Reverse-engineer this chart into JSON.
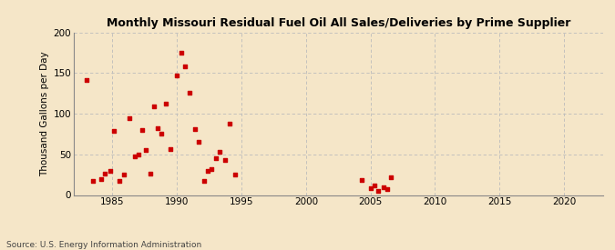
{
  "title": "Monthly Missouri Residual Fuel Oil All Sales/Deliveries by Prime Supplier",
  "ylabel": "Thousand Gallons per Day",
  "source": "Source: U.S. Energy Information Administration",
  "background_color": "#f5e6c8",
  "scatter_color": "#cc0000",
  "xlim": [
    1982,
    2023
  ],
  "ylim": [
    0,
    200
  ],
  "xticks": [
    1985,
    1990,
    1995,
    2000,
    2005,
    2010,
    2015,
    2020
  ],
  "yticks": [
    0,
    50,
    100,
    150,
    200
  ],
  "x": [
    1983.0,
    1983.5,
    1984.1,
    1984.4,
    1984.8,
    1985.1,
    1985.5,
    1985.9,
    1986.3,
    1986.7,
    1987.0,
    1987.3,
    1987.6,
    1987.9,
    1988.2,
    1988.5,
    1988.8,
    1989.1,
    1989.5,
    1990.0,
    1990.3,
    1990.6,
    1991.0,
    1991.4,
    1991.7,
    1992.1,
    1992.4,
    1992.7,
    1993.0,
    1993.3,
    1993.7,
    1994.1,
    1994.5,
    2004.3,
    2005.0,
    2005.3,
    2005.6,
    2006.0,
    2006.3,
    2006.6
  ],
  "y": [
    142,
    17,
    20,
    26,
    30,
    79,
    17,
    25,
    95,
    47,
    50,
    80,
    55,
    26,
    109,
    82,
    75,
    112,
    56,
    147,
    175,
    158,
    126,
    81,
    65,
    17,
    30,
    32,
    45,
    53,
    43,
    88,
    25,
    19,
    8,
    12,
    5,
    10,
    7,
    22
  ]
}
